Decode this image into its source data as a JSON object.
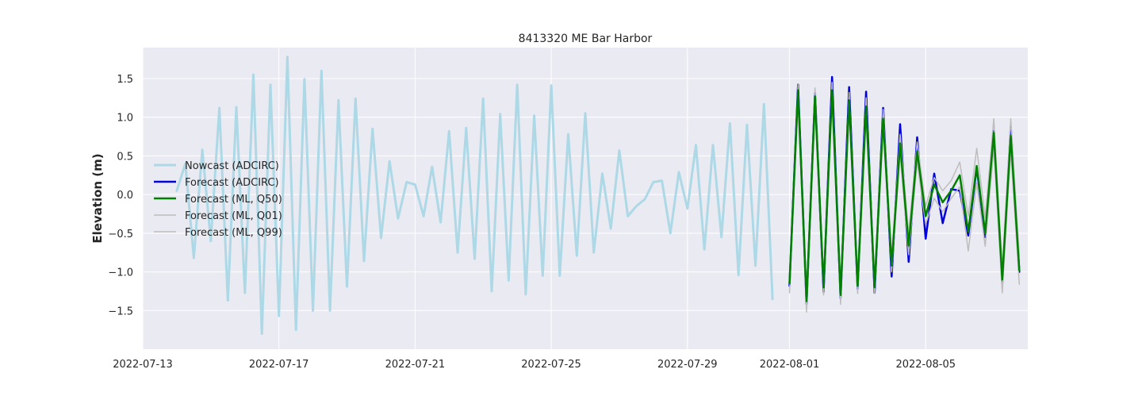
{
  "chart_data": {
    "type": "line",
    "title": "8413320 ME Bar Harbor",
    "xlabel": "",
    "ylabel": "Elevation (m)",
    "grid": true,
    "legend_position": "center-left",
    "xlim": [
      "2022-07-13T00:00",
      "2022-08-08T00:00"
    ],
    "ylim": [
      -2.0,
      1.9
    ],
    "x_ticks": [
      "2022-07-13",
      "2022-07-17",
      "2022-07-21",
      "2022-07-25",
      "2022-07-29",
      "2022-08-01",
      "2022-08-05"
    ],
    "y_ticks": [
      -1.5,
      -1.0,
      -0.5,
      0.0,
      0.5,
      1.0,
      1.5
    ],
    "y_tick_labels": [
      "−1.5",
      "−1.0",
      "−0.5",
      "0.0",
      "0.5",
      "1.0",
      "1.5"
    ],
    "series": [
      {
        "name": "Nowcast (ADCIRC)",
        "color": "#add8e6",
        "x": [
          "2022-07-14T00:00",
          "2022-07-14T06:00",
          "2022-07-14T12:00",
          "2022-07-14T18:00",
          "2022-07-15T00:00",
          "2022-07-15T06:00",
          "2022-07-15T12:00",
          "2022-07-15T18:00",
          "2022-07-16T00:00",
          "2022-07-16T06:00",
          "2022-07-16T12:00",
          "2022-07-16T18:00",
          "2022-07-17T00:00",
          "2022-07-17T06:00",
          "2022-07-17T12:00",
          "2022-07-17T18:00",
          "2022-07-18T00:00",
          "2022-07-18T06:00",
          "2022-07-18T12:00",
          "2022-07-18T18:00",
          "2022-07-19T00:00",
          "2022-07-19T06:00",
          "2022-07-19T12:00",
          "2022-07-19T18:00",
          "2022-07-20T00:00",
          "2022-07-20T06:00",
          "2022-07-20T12:00",
          "2022-07-20T18:00",
          "2022-07-21T00:00",
          "2022-07-21T06:00",
          "2022-07-21T12:00",
          "2022-07-21T18:00",
          "2022-07-22T00:00",
          "2022-07-22T06:00",
          "2022-07-22T12:00",
          "2022-07-22T18:00",
          "2022-07-23T00:00",
          "2022-07-23T06:00",
          "2022-07-23T12:00",
          "2022-07-23T18:00",
          "2022-07-24T00:00",
          "2022-07-24T06:00",
          "2022-07-24T12:00",
          "2022-07-24T18:00",
          "2022-07-25T00:00",
          "2022-07-25T06:00",
          "2022-07-25T12:00",
          "2022-07-25T18:00",
          "2022-07-26T00:00",
          "2022-07-26T06:00",
          "2022-07-26T12:00",
          "2022-07-26T18:00",
          "2022-07-27T00:00",
          "2022-07-27T06:00",
          "2022-07-27T12:00",
          "2022-07-27T18:00",
          "2022-07-28T00:00",
          "2022-07-28T06:00",
          "2022-07-28T12:00",
          "2022-07-28T18:00",
          "2022-07-29T00:00",
          "2022-07-29T06:00",
          "2022-07-29T12:00",
          "2022-07-29T18:00",
          "2022-07-30T00:00",
          "2022-07-30T06:00",
          "2022-07-30T12:00",
          "2022-07-30T18:00",
          "2022-07-31T00:00",
          "2022-07-31T06:00",
          "2022-07-31T12:00"
        ],
        "values": [
          0.05,
          0.4,
          -0.82,
          0.58,
          -0.6,
          1.12,
          -1.37,
          1.13,
          -1.27,
          1.55,
          -1.8,
          1.42,
          -1.57,
          1.78,
          -1.75,
          1.49,
          -1.5,
          1.6,
          -1.5,
          1.22,
          -1.19,
          1.24,
          -0.86,
          0.85,
          -0.56,
          0.43,
          -0.31,
          0.16,
          0.13,
          -0.28,
          0.36,
          -0.36,
          0.82,
          -0.75,
          0.86,
          -0.83,
          1.24,
          -1.25,
          1.04,
          -1.11,
          1.42,
          -1.29,
          1.02,
          -1.05,
          1.41,
          -1.05,
          0.78,
          -0.79,
          1.05,
          -0.75,
          0.27,
          -0.44,
          0.57,
          -0.28,
          -0.15,
          -0.06,
          0.16,
          0.18,
          -0.5,
          0.29,
          -0.18,
          0.64,
          -0.71,
          0.64,
          -0.55,
          0.92,
          -1.04,
          0.9,
          -0.92,
          1.17,
          -1.35
        ]
      },
      {
        "name": "Forecast (ADCIRC)",
        "color": "#0000dd",
        "x": [
          "2022-08-01T00:00",
          "2022-08-01T06:00",
          "2022-08-01T12:00",
          "2022-08-01T18:00",
          "2022-08-02T00:00",
          "2022-08-02T06:00",
          "2022-08-02T12:00",
          "2022-08-02T18:00",
          "2022-08-03T00:00",
          "2022-08-03T06:00",
          "2022-08-03T12:00",
          "2022-08-03T18:00",
          "2022-08-04T00:00",
          "2022-08-04T06:00",
          "2022-08-04T12:00",
          "2022-08-04T18:00",
          "2022-08-05T00:00",
          "2022-08-05T06:00",
          "2022-08-05T12:00",
          "2022-08-05T18:00",
          "2022-08-06T00:00",
          "2022-08-06T06:00",
          "2022-08-06T12:00",
          "2022-08-06T18:00",
          "2022-08-07T00:00",
          "2022-08-07T06:00",
          "2022-08-07T12:00",
          "2022-08-07T18:00"
        ],
        "values": [
          -1.18,
          1.42,
          -1.42,
          1.31,
          -1.26,
          1.52,
          -1.34,
          1.39,
          -1.22,
          1.33,
          -1.27,
          1.12,
          -1.06,
          0.91,
          -0.87,
          0.74,
          -0.57,
          0.27,
          -0.37,
          0.07,
          0.05,
          -0.53,
          0.35,
          -0.55,
          0.82,
          -1.15,
          0.88,
          -1.0
        ]
      },
      {
        "name": "Forecast (ML, Q50)",
        "color": "#008000",
        "x": [
          "2022-08-01T00:00",
          "2022-08-01T06:00",
          "2022-08-01T12:00",
          "2022-08-01T18:00",
          "2022-08-02T00:00",
          "2022-08-02T06:00",
          "2022-08-02T12:00",
          "2022-08-02T18:00",
          "2022-08-03T00:00",
          "2022-08-03T06:00",
          "2022-08-03T12:00",
          "2022-08-03T18:00",
          "2022-08-04T00:00",
          "2022-08-04T06:00",
          "2022-08-04T12:00",
          "2022-08-04T18:00",
          "2022-08-05T00:00",
          "2022-08-05T06:00",
          "2022-08-05T12:00",
          "2022-08-05T18:00",
          "2022-08-06T00:00",
          "2022-08-06T06:00",
          "2022-08-06T12:00",
          "2022-08-06T18:00",
          "2022-08-07T00:00",
          "2022-08-07T06:00",
          "2022-08-07T12:00",
          "2022-08-07T18:00"
        ],
        "values": [
          -1.15,
          1.35,
          -1.38,
          1.27,
          -1.2,
          1.35,
          -1.3,
          1.22,
          -1.18,
          1.14,
          -1.2,
          0.98,
          -0.92,
          0.66,
          -0.66,
          0.56,
          -0.28,
          0.13,
          -0.1,
          0.05,
          0.25,
          -0.48,
          0.37,
          -0.5,
          0.8,
          -1.1,
          0.76,
          -0.98
        ]
      },
      {
        "name": "Forecast (ML, Q01)",
        "color": "#bdbdbd",
        "x": [
          "2022-08-01T00:00",
          "2022-08-01T06:00",
          "2022-08-01T12:00",
          "2022-08-01T18:00",
          "2022-08-02T00:00",
          "2022-08-02T06:00",
          "2022-08-02T12:00",
          "2022-08-02T18:00",
          "2022-08-03T00:00",
          "2022-08-03T06:00",
          "2022-08-03T12:00",
          "2022-08-03T18:00",
          "2022-08-04T00:00",
          "2022-08-04T06:00",
          "2022-08-04T12:00",
          "2022-08-04T18:00",
          "2022-08-05T00:00",
          "2022-08-05T06:00",
          "2022-08-05T12:00",
          "2022-08-05T18:00",
          "2022-08-06T00:00",
          "2022-08-06T06:00",
          "2022-08-06T12:00",
          "2022-08-06T18:00",
          "2022-08-07T00:00",
          "2022-08-07T06:00",
          "2022-08-07T12:00",
          "2022-08-07T18:00"
        ],
        "values": [
          -1.27,
          1.2,
          -1.52,
          1.1,
          -1.3,
          1.2,
          -1.42,
          1.08,
          -1.28,
          1.0,
          -1.28,
          0.85,
          -1.0,
          0.52,
          -0.78,
          0.42,
          -0.38,
          -0.05,
          -0.22,
          -0.05,
          0.1,
          -0.73,
          0.15,
          -0.67,
          0.6,
          -1.27,
          0.58,
          -1.16
        ]
      },
      {
        "name": "Forecast (ML, Q99)",
        "color": "#bdbdbd",
        "x": [
          "2022-08-01T00:00",
          "2022-08-01T06:00",
          "2022-08-01T12:00",
          "2022-08-01T18:00",
          "2022-08-02T00:00",
          "2022-08-02T06:00",
          "2022-08-02T12:00",
          "2022-08-02T18:00",
          "2022-08-03T00:00",
          "2022-08-03T06:00",
          "2022-08-03T12:00",
          "2022-08-03T18:00",
          "2022-08-04T00:00",
          "2022-08-04T06:00",
          "2022-08-04T12:00",
          "2022-08-04T18:00",
          "2022-08-05T00:00",
          "2022-08-05T06:00",
          "2022-08-05T12:00",
          "2022-08-05T18:00",
          "2022-08-06T00:00",
          "2022-08-06T06:00",
          "2022-08-06T12:00",
          "2022-08-06T18:00",
          "2022-08-07T00:00",
          "2022-08-07T06:00",
          "2022-08-07T12:00",
          "2022-08-07T18:00"
        ],
        "values": [
          -1.05,
          1.42,
          -1.25,
          1.38,
          -1.1,
          1.45,
          -1.18,
          1.32,
          -1.05,
          1.25,
          -1.08,
          1.1,
          -0.8,
          0.78,
          -0.5,
          0.68,
          -0.15,
          0.22,
          0.05,
          0.18,
          0.42,
          -0.28,
          0.6,
          -0.3,
          0.98,
          -0.95,
          0.98,
          -0.8
        ]
      }
    ]
  }
}
